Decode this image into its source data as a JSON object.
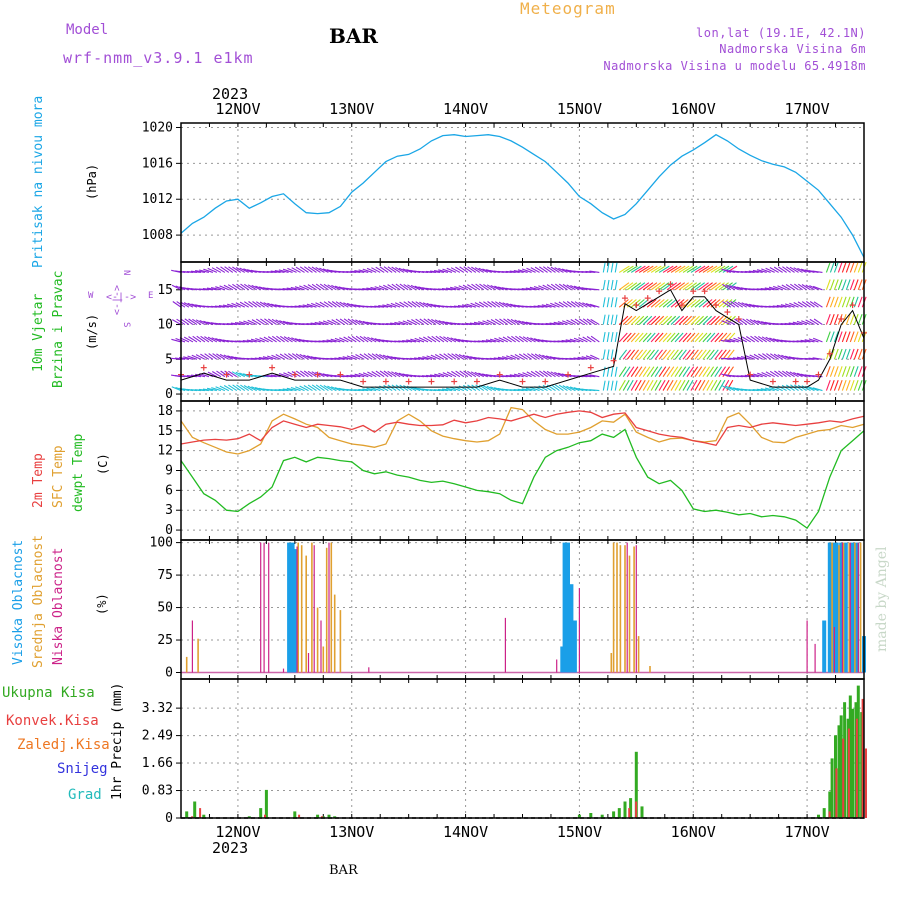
{
  "header": {
    "model_label": "Model",
    "model_name": "wrf-nmm_v3.9.1 e1km",
    "station": "BAR",
    "chart_title": "Meteogram",
    "coords": "lon,lat (19.1E, 42.1N)",
    "elevation": "Nadmorska Visina 6m",
    "model_elevation": "Nadmorska Visina u modelu 65.4918m",
    "watermark": "made by Angel",
    "footer_station": "BAR"
  },
  "colors": {
    "pressure": "#1aa6e6",
    "wind_label": "#22bb22",
    "wind_purple": "#8a22d4",
    "wind_cyan": "#20c0d8",
    "temp2m": "#e84040",
    "sfc": "#e0a030",
    "dewpt": "#22bb22",
    "cloud_high": "#1a9fe8",
    "cloud_mid": "#e0a030",
    "cloud_low": "#cc2288",
    "precip_total": "#33aa22",
    "precip_conv": "#e84040",
    "precip_frozen": "#ee7722",
    "snow": "#3333dd",
    "grad": "#22bbbb",
    "header_purple": "#a24fd6",
    "title_orange": "#f0b04a"
  },
  "chart_data": [
    {
      "type": "line",
      "panel": "pressure",
      "title": "",
      "ylabel_main": "Pritisak na nivou mora",
      "ylabel_unit": "(hPa)",
      "year_label": "2023",
      "x_ticks": [
        "12NOV",
        "13NOV",
        "14NOV",
        "15NOV",
        "16NOV",
        "17NOV"
      ],
      "xlim": [
        11.5,
        17.5
      ],
      "ylim": [
        1005,
        1020.5
      ],
      "y_ticks": [
        1008,
        1012,
        1016,
        1020
      ],
      "series": [
        {
          "x": [
            11.5,
            11.6,
            11.7,
            11.8,
            11.9,
            12.0,
            12.1,
            12.2,
            12.3,
            12.4,
            12.5,
            12.6,
            12.7,
            12.8,
            12.9,
            13.0,
            13.1,
            13.2,
            13.3,
            13.4,
            13.5,
            13.6,
            13.7,
            13.8,
            13.9,
            14.0,
            14.1,
            14.2,
            14.3,
            14.4,
            14.5,
            14.6,
            14.7,
            14.8,
            14.9,
            15.0,
            15.1,
            15.2,
            15.3,
            15.4,
            15.5,
            15.6,
            15.7,
            15.8,
            15.9,
            16.0,
            16.1,
            16.2,
            16.3,
            16.4,
            16.5,
            16.6,
            16.7,
            16.8,
            16.9,
            17.0,
            17.1,
            17.2,
            17.3,
            17.4,
            17.5
          ],
          "values": [
            1008.2,
            1009.3,
            1010.0,
            1011.0,
            1011.8,
            1012.0,
            1011.0,
            1011.6,
            1012.3,
            1012.6,
            1011.5,
            1010.5,
            1010.4,
            1010.5,
            1011.2,
            1012.8,
            1013.8,
            1015.0,
            1016.2,
            1016.8,
            1017.0,
            1017.6,
            1018.5,
            1019.1,
            1019.2,
            1019.0,
            1019.1,
            1019.2,
            1019.0,
            1018.5,
            1017.8,
            1017.0,
            1016.2,
            1015.0,
            1013.8,
            1012.3,
            1011.5,
            1010.5,
            1009.8,
            1010.3,
            1011.5,
            1013.0,
            1014.5,
            1015.8,
            1016.8,
            1017.5,
            1018.3,
            1019.2,
            1018.5,
            1017.6,
            1016.9,
            1016.3,
            1015.9,
            1015.6,
            1015.0,
            1014.0,
            1013.0,
            1011.5,
            1010.0,
            1008.0,
            1005.5
          ]
        }
      ]
    },
    {
      "type": "line",
      "panel": "wind",
      "ylabel_main": "10m Vjetar",
      "ylabel_sub": "Brzina i Pravac",
      "ylabel_unit": "(m/s)",
      "compass": {
        "n": "N",
        "s": "S",
        "e": "E",
        "w": "W",
        "arrows": "<-|->"
      },
      "xlim": [
        11.5,
        17.5
      ],
      "ylim": [
        -1,
        19
      ],
      "y_ticks": [
        0,
        5,
        10,
        15
      ],
      "series": [
        {
          "name": "speed",
          "x": [
            11.5,
            11.7,
            11.9,
            12.1,
            12.3,
            12.5,
            12.7,
            12.9,
            13.1,
            13.3,
            13.5,
            13.7,
            13.9,
            14.1,
            14.3,
            14.5,
            14.7,
            14.9,
            15.1,
            15.3,
            15.4,
            15.5,
            15.6,
            15.7,
            15.8,
            15.9,
            16.0,
            16.1,
            16.2,
            16.3,
            16.4,
            16.5,
            16.7,
            16.9,
            17.0,
            17.1,
            17.2,
            17.3,
            17.4,
            17.5
          ],
          "values": [
            2,
            3,
            2,
            2,
            3,
            2,
            2,
            2,
            1,
            1,
            1,
            1,
            1,
            1,
            2,
            1,
            1,
            2,
            3,
            4,
            13,
            12,
            13,
            14,
            15,
            12,
            14,
            14,
            12,
            11,
            10,
            2,
            1,
            1,
            1,
            2,
            5,
            10,
            12,
            8
          ]
        }
      ]
    },
    {
      "type": "line",
      "panel": "temperature",
      "ylabel_main": "2m Temp",
      "ylabel_mid": "SFC Temp",
      "ylabel_sub": "dewpt Temp",
      "ylabel_unit": "(C)",
      "xlim": [
        11.5,
        17.5
      ],
      "ylim": [
        -1.5,
        19.5
      ],
      "y_ticks": [
        0,
        3,
        6,
        9,
        12,
        15,
        18
      ],
      "x": [
        11.5,
        11.6,
        11.7,
        11.8,
        11.9,
        12.0,
        12.1,
        12.2,
        12.3,
        12.4,
        12.5,
        12.6,
        12.7,
        12.8,
        12.9,
        13.0,
        13.1,
        13.2,
        13.3,
        13.4,
        13.5,
        13.6,
        13.7,
        13.8,
        13.9,
        14.0,
        14.1,
        14.2,
        14.3,
        14.4,
        14.5,
        14.6,
        14.7,
        14.8,
        14.9,
        15.0,
        15.1,
        15.2,
        15.3,
        15.4,
        15.5,
        15.6,
        15.7,
        15.8,
        15.9,
        16.0,
        16.1,
        16.2,
        16.3,
        16.4,
        16.5,
        16.6,
        16.7,
        16.8,
        16.9,
        17.0,
        17.1,
        17.2,
        17.3,
        17.4,
        17.5
      ],
      "series": [
        {
          "name": "2m",
          "values": [
            13,
            13.3,
            13.6,
            13.7,
            13.6,
            13.8,
            14.5,
            13.5,
            15.5,
            16.5,
            16,
            15.5,
            16,
            15.8,
            15.6,
            15.2,
            15.8,
            14.8,
            16,
            16.3,
            16,
            15.8,
            15.8,
            15.9,
            16.6,
            16.2,
            16.5,
            17,
            16.8,
            16.5,
            17,
            17.5,
            17,
            17.5,
            17.8,
            18,
            17.8,
            17,
            17.5,
            17.7,
            15.5,
            15,
            14.5,
            14.2,
            14,
            13.5,
            13.2,
            12.8,
            15.5,
            15.8,
            15.5,
            16,
            16.2,
            16,
            15.8,
            16,
            16.2,
            16.5,
            16.3,
            16.8,
            17.2
          ]
        },
        {
          "name": "sfc",
          "values": [
            16.5,
            14,
            13.2,
            12.5,
            11.8,
            11.5,
            12,
            13,
            16.5,
            17.5,
            16.8,
            16,
            15.5,
            14,
            13.5,
            13,
            12.8,
            12.5,
            13,
            16.5,
            17.5,
            16.5,
            15,
            14.2,
            13.8,
            13.5,
            13.3,
            13.5,
            14.5,
            18.5,
            18.2,
            16.5,
            15.2,
            14.5,
            14.5,
            14.8,
            15.5,
            16.5,
            16.3,
            17.5,
            14.8,
            14,
            13.3,
            13.8,
            13.9,
            13.5,
            13.3,
            13.5,
            17,
            17.7,
            16,
            14,
            13.3,
            13.2,
            14,
            14.5,
            15,
            15.2,
            15.8,
            15.5,
            16
          ]
        },
        {
          "name": "dewpt",
          "values": [
            10.5,
            8,
            5.5,
            4.5,
            3,
            2.8,
            4,
            5,
            6.5,
            10.5,
            11,
            10.3,
            11,
            10.8,
            10.5,
            10.3,
            9,
            8.5,
            8.8,
            8.3,
            8,
            7.5,
            7.2,
            7.4,
            7,
            6.5,
            6,
            5.8,
            5.5,
            4.5,
            4,
            8,
            11,
            12,
            12.5,
            13.2,
            13.5,
            14.5,
            14,
            15.2,
            11,
            8,
            7,
            7.5,
            6,
            3.2,
            2.8,
            3,
            2.7,
            2.3,
            2.5,
            2,
            2.2,
            2,
            1.5,
            0.3,
            2.8,
            8,
            12,
            13.5,
            15
          ]
        }
      ]
    },
    {
      "type": "bar",
      "panel": "clouds",
      "ylabel_main": "Visoka Oblacnost",
      "ylabel_mid": "Srednja Oblacnost",
      "ylabel_sub": "Niska Oblacnost",
      "ylabel_unit": "(%)",
      "xlim": [
        11.5,
        17.5
      ],
      "ylim": [
        -5,
        102
      ],
      "y_ticks": [
        0,
        25,
        50,
        75,
        100
      ],
      "series": [
        {
          "name": "high",
          "x": [
            12.45,
            12.48,
            12.5,
            14.85,
            14.87,
            14.9,
            14.93,
            14.96,
            17.15,
            17.2,
            17.23,
            17.26,
            17.3,
            17.34,
            17.4,
            17.44,
            17.5
          ],
          "values": [
            100,
            100,
            95,
            20,
            100,
            100,
            68,
            40,
            40,
            100,
            100,
            100,
            100,
            100,
            100,
            100,
            28
          ]
        },
        {
          "name": "mid",
          "x": [
            11.55,
            11.65,
            12.53,
            12.56,
            12.6,
            12.65,
            12.7,
            12.75,
            12.78,
            12.82,
            12.85,
            12.9,
            15.28,
            15.3,
            15.33,
            15.36,
            15.4,
            15.44,
            15.48,
            15.52,
            15.62,
            17.22,
            17.28,
            17.32,
            17.37,
            17.42,
            17.47
          ],
          "values": [
            12,
            26,
            100,
            98,
            90,
            100,
            50,
            20,
            96,
            100,
            60,
            48,
            15,
            100,
            100,
            98,
            98,
            90,
            97,
            28,
            5,
            100,
            98,
            100,
            100,
            100,
            100
          ]
        },
        {
          "name": "low",
          "x": [
            11.6,
            12.2,
            12.23,
            12.27,
            12.4,
            12.52,
            12.62,
            12.67,
            12.73,
            12.8,
            13.15,
            14.35,
            14.8,
            15.0,
            15.42,
            15.5,
            17.0,
            17.07,
            17.24,
            17.31,
            17.38,
            17.45
          ],
          "values": [
            40,
            100,
            100,
            100,
            3,
            97,
            15,
            98,
            40,
            100,
            4,
            42,
            10,
            65,
            100,
            98,
            40,
            22,
            35,
            100,
            100,
            100
          ]
        }
      ]
    },
    {
      "type": "bar",
      "panel": "precip",
      "legend": [
        "Ukupna Kisa",
        "Konvek.Kisa",
        "Zaledj.Kisa",
        "Snijeg",
        "Grad"
      ],
      "ylabel_unit": "1hr Precip (mm)",
      "year_label": "2023",
      "x_ticks": [
        "12NOV",
        "13NOV",
        "14NOV",
        "15NOV",
        "16NOV",
        "17NOV"
      ],
      "xlim": [
        11.5,
        17.5
      ],
      "ylim": [
        0,
        4.2
      ],
      "y_ticks": [
        0,
        0.83,
        1.66,
        2.49,
        3.32
      ],
      "series": [
        {
          "name": "Ukupna Kisa",
          "x": [
            11.55,
            11.62,
            11.7,
            12.1,
            12.2,
            12.25,
            12.5,
            12.7,
            12.75,
            12.8,
            12.85,
            15.0,
            15.1,
            15.2,
            15.3,
            15.35,
            15.4,
            15.45,
            15.5,
            15.55,
            17.1,
            17.15,
            17.2,
            17.22,
            17.25,
            17.28,
            17.3,
            17.33,
            17.36,
            17.38,
            17.4,
            17.43,
            17.45,
            17.48
          ],
          "values": [
            0.2,
            0.5,
            0.1,
            0.05,
            0.3,
            0.85,
            0.2,
            0.1,
            0.05,
            0.1,
            0.05,
            0.1,
            0.15,
            0.1,
            0.2,
            0.3,
            0.5,
            0.6,
            2.0,
            0.35,
            0.1,
            0.3,
            0.8,
            1.8,
            2.5,
            2.8,
            3.1,
            3.5,
            3.0,
            3.7,
            3.3,
            3.5,
            4.0,
            3.2
          ]
        },
        {
          "name": "Konvek.Kisa",
          "x": [
            11.58,
            11.65,
            12.22,
            12.52,
            12.72,
            15.42,
            15.48,
            17.18,
            17.24,
            17.3,
            17.35,
            17.42,
            17.47,
            17.5
          ],
          "values": [
            0.05,
            0.3,
            0.1,
            0.1,
            0.05,
            0.3,
            0.5,
            0.2,
            1.5,
            2.4,
            2.7,
            3.0,
            3.6,
            2.1
          ]
        }
      ]
    }
  ]
}
